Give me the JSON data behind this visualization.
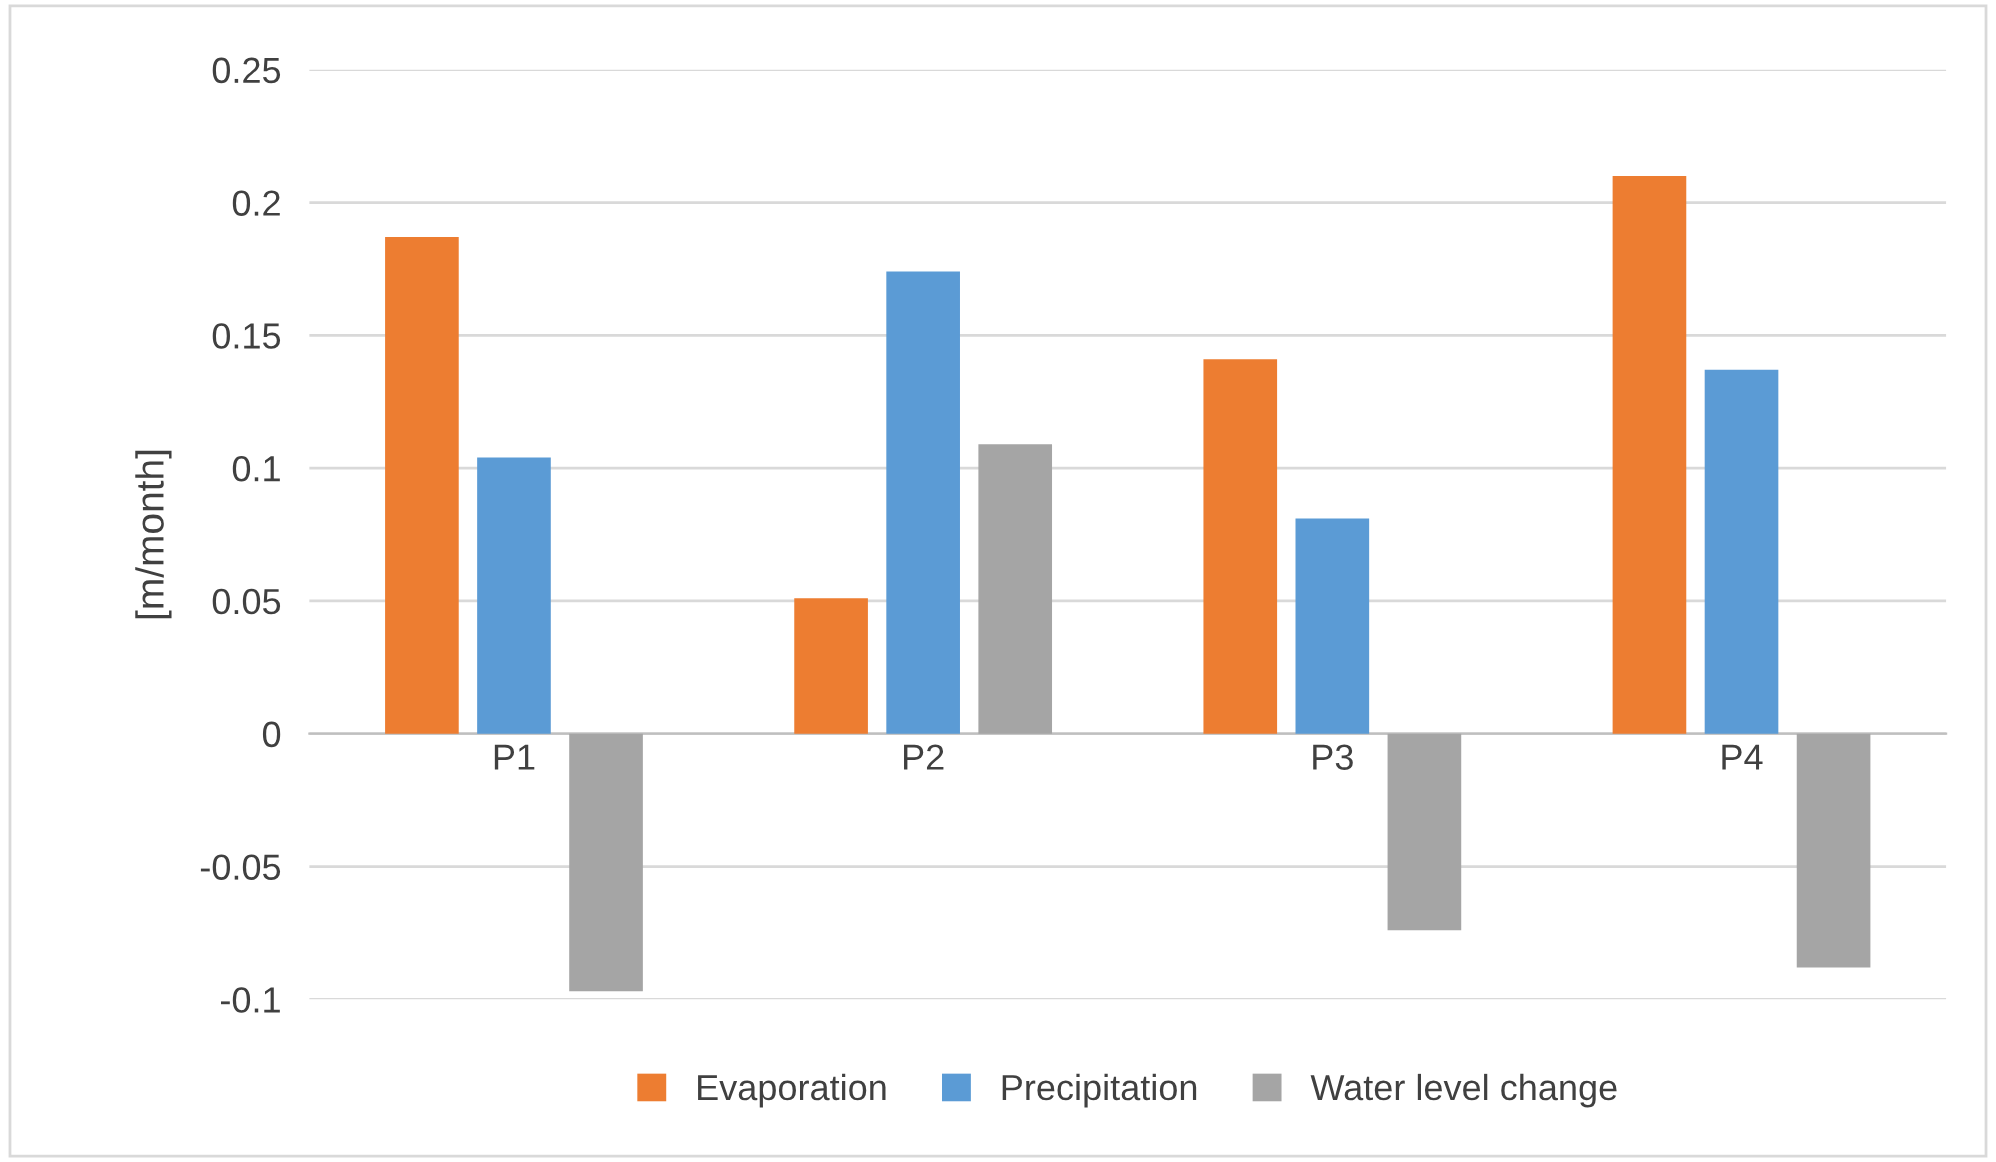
{
  "chart_data": {
    "type": "bar",
    "ylabel": "[m/month]",
    "categories": [
      "P1",
      "P2",
      "P3",
      "P4"
    ],
    "series": [
      {
        "name": "Evaporation",
        "color": "#ed7d31",
        "values": [
          0.187,
          0.051,
          0.141,
          0.21
        ]
      },
      {
        "name": "Precipitation",
        "color": "#5b9bd5",
        "values": [
          0.104,
          0.174,
          0.081,
          0.137
        ]
      },
      {
        "name": "Water level change",
        "color": "#a5a5a5",
        "values": [
          -0.097,
          0.109,
          -0.074,
          -0.088
        ]
      }
    ],
    "ylim": [
      -0.1,
      0.25
    ],
    "yticks": [
      -0.1,
      -0.05,
      0,
      0.05,
      0.1,
      0.15,
      0.2,
      0.25
    ],
    "grid": "y",
    "legend": "bottom"
  }
}
